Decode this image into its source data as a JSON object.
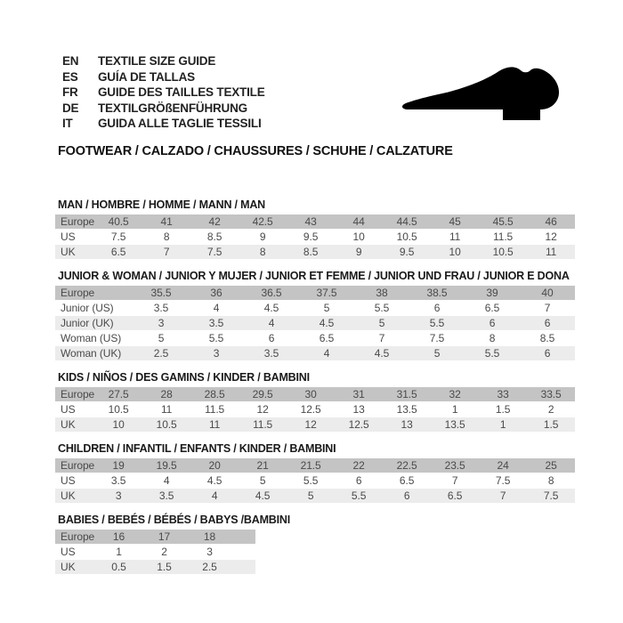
{
  "header": {
    "languages": [
      {
        "code": "EN",
        "text": "TEXTILE SIZE GUIDE"
      },
      {
        "code": "ES",
        "text": "GUÍA DE TALLAS"
      },
      {
        "code": "FR",
        "text": "GUIDE DES TAILLES TEXTILE"
      },
      {
        "code": "DE",
        "text": "TEXTILGRÖßENFÜHRUNG"
      },
      {
        "code": "IT",
        "text": "GUIDA ALLE TAGLIE TESSILI"
      }
    ],
    "category_line": "FOOTWEAR / CALZADO / CHAUSSURES / SCHUHE / CALZATURE",
    "shoe_icon": "dress-shoe-silhouette",
    "shoe_color": "#000000"
  },
  "colors": {
    "background": "#ffffff",
    "table_header_row_bg": "#c4c4c4",
    "table_alt_row_bg": "#ececec",
    "table_text": "#4a4a4a",
    "title_text": "#1a1a1a"
  },
  "tables": [
    {
      "id": "man",
      "title": "MAN / HOMBRE / HOMME / MANN / MAN",
      "rows": [
        {
          "label": "Europe",
          "values": [
            "40.5",
            "41",
            "42",
            "42.5",
            "43",
            "44",
            "44.5",
            "45",
            "45.5",
            "46"
          ]
        },
        {
          "label": "US",
          "values": [
            "7.5",
            "8",
            "8.5",
            "9",
            "9.5",
            "10",
            "10.5",
            "11",
            "11.5",
            "12"
          ]
        },
        {
          "label": "UK",
          "values": [
            "6.5",
            "7",
            "7.5",
            "8",
            "8.5",
            "9",
            "9.5",
            "10",
            "10.5",
            "11"
          ]
        }
      ]
    },
    {
      "id": "junior-woman",
      "title": "JUNIOR & WOMAN / JUNIOR Y MUJER / JUNIOR ET FEMME / JUNIOR UND FRAU / JUNIOR E DONA",
      "rows": [
        {
          "label": "Europe",
          "values": [
            "35.5",
            "36",
            "36.5",
            "37.5",
            "38",
            "38.5",
            "39",
            "40"
          ]
        },
        {
          "label": "Junior (US)",
          "values": [
            "3.5",
            "4",
            "4.5",
            "5",
            "5.5",
            "6",
            "6.5",
            "7"
          ]
        },
        {
          "label": "Junior (UK)",
          "values": [
            "3",
            "3.5",
            "4",
            "4.5",
            "5",
            "5.5",
            "6",
            "6"
          ]
        },
        {
          "label": "Woman (US)",
          "values": [
            "5",
            "5.5",
            "6",
            "6.5",
            "7",
            "7.5",
            "8",
            "8.5"
          ]
        },
        {
          "label": "Woman (UK)",
          "values": [
            "2.5",
            "3",
            "3.5",
            "4",
            "4.5",
            "5",
            "5.5",
            "6"
          ]
        }
      ]
    },
    {
      "id": "kids",
      "title": "KIDS / NIÑOS / DES GAMINS / KINDER / BAMBINI",
      "rows": [
        {
          "label": "Europe",
          "values": [
            "27.5",
            "28",
            "28.5",
            "29.5",
            "30",
            "31",
            "31.5",
            "32",
            "33",
            "33.5"
          ]
        },
        {
          "label": "US",
          "values": [
            "10.5",
            "11",
            "11.5",
            "12",
            "12.5",
            "13",
            "13.5",
            "1",
            "1.5",
            "2"
          ]
        },
        {
          "label": "UK",
          "values": [
            "10",
            "10.5",
            "11",
            "11.5",
            "12",
            "12.5",
            "13",
            "13.5",
            "1",
            "1.5"
          ]
        }
      ]
    },
    {
      "id": "children",
      "title": "CHILDREN / INFANTIL / ENFANTS / KINDER / BAMBINI",
      "rows": [
        {
          "label": "Europe",
          "values": [
            "19",
            "19.5",
            "20",
            "21",
            "21.5",
            "22",
            "22.5",
            "23.5",
            "24",
            "25"
          ]
        },
        {
          "label": "US",
          "values": [
            "3.5",
            "4",
            "4.5",
            "5",
            "5.5",
            "6",
            "6.5",
            "7",
            "7.5",
            "8"
          ]
        },
        {
          "label": "UK",
          "values": [
            "3",
            "3.5",
            "4",
            "4.5",
            "5",
            "5.5",
            "6",
            "6.5",
            "7",
            "7.5"
          ]
        }
      ]
    },
    {
      "id": "babies",
      "title": "BABIES / BEBÉS / BÉBÉS / BABYS /BAMBINI",
      "rows": [
        {
          "label": "Europe",
          "values": [
            "16",
            "17",
            "18"
          ]
        },
        {
          "label": "US",
          "values": [
            "1",
            "2",
            "3"
          ]
        },
        {
          "label": "UK",
          "values": [
            "0.5",
            "1.5",
            "2.5"
          ]
        }
      ]
    }
  ]
}
